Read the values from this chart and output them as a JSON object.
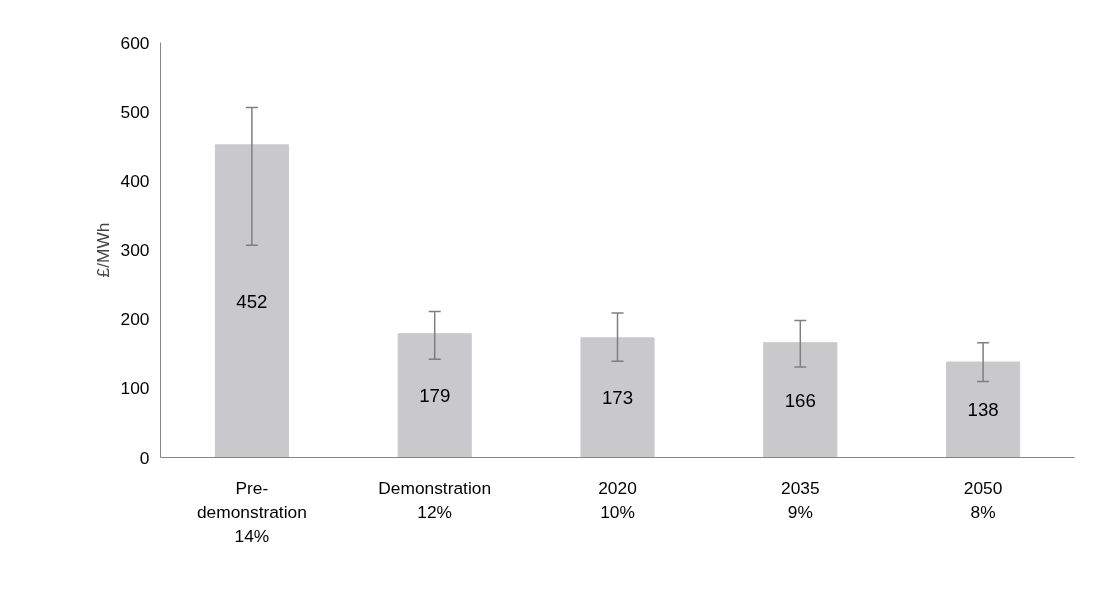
{
  "chart_data": {
    "type": "bar",
    "ylabel": "£/MWh",
    "categories": [
      "Pre-\ndemonstration\n14%",
      "Demonstration\n12%",
      "2020\n10%",
      "2035\n9%",
      "2050\n8%"
    ],
    "values": [
      452,
      179,
      173,
      166,
      138
    ],
    "errors": [
      [
        307,
        506
      ],
      [
        142,
        211
      ],
      [
        139,
        209
      ],
      [
        131,
        198
      ],
      [
        110,
        166
      ]
    ],
    "color": "#c9c9cb",
    "ylim": [
      0,
      600
    ],
    "yticks": [
      0,
      100,
      200,
      300,
      400,
      500,
      600
    ],
    "grid": false,
    "data_labels": true
  }
}
